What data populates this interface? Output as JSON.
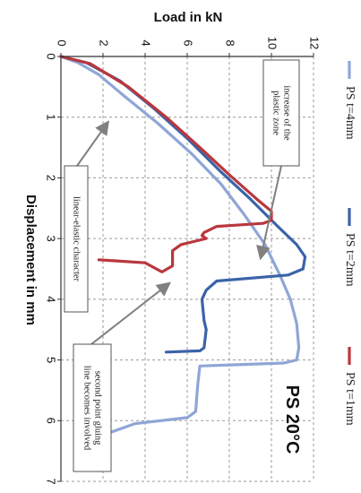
{
  "chart_data": {
    "type": "line",
    "title": "PS 20°C",
    "xlabel": "Load in kN",
    "ylabel": "Displacement in mm",
    "xlim": [
      0,
      12
    ],
    "ylim": [
      0,
      7
    ],
    "xticks": [
      "0",
      "2",
      "4",
      "6",
      "8",
      "10",
      "12"
    ],
    "yticks": [
      "0",
      "1",
      "2",
      "3",
      "4",
      "5",
      "6",
      "7"
    ],
    "grid": "dashed",
    "legend_position": "right",
    "series": [
      {
        "name": "PS t=4mm",
        "color": "#8fa6d6",
        "points": [
          [
            0,
            0
          ],
          [
            0.8,
            0.1
          ],
          [
            1.8,
            0.3
          ],
          [
            3.0,
            0.65
          ],
          [
            4.6,
            1.1
          ],
          [
            6.2,
            1.6
          ],
          [
            7.6,
            2.1
          ],
          [
            8.7,
            2.6
          ],
          [
            9.7,
            3.1
          ],
          [
            10.4,
            3.6
          ],
          [
            10.9,
            4.0
          ],
          [
            11.2,
            4.4
          ],
          [
            11.3,
            4.8
          ],
          [
            11.2,
            5.0
          ],
          [
            10.6,
            5.05
          ],
          [
            6.6,
            5.1
          ],
          [
            6.5,
            5.4
          ],
          [
            6.4,
            5.85
          ],
          [
            6.0,
            5.95
          ],
          [
            3.5,
            6.05
          ],
          [
            2.3,
            6.2
          ]
        ]
      },
      {
        "name": "PS t=2mm",
        "color": "#3b63a8",
        "points": [
          [
            0,
            0
          ],
          [
            1.2,
            0.1
          ],
          [
            2.8,
            0.4
          ],
          [
            4.4,
            0.85
          ],
          [
            6.0,
            1.35
          ],
          [
            7.6,
            1.9
          ],
          [
            9.0,
            2.35
          ],
          [
            10.3,
            2.8
          ],
          [
            11.2,
            3.1
          ],
          [
            11.6,
            3.3
          ],
          [
            11.5,
            3.5
          ],
          [
            10.8,
            3.6
          ],
          [
            7.4,
            3.7
          ],
          [
            6.9,
            3.85
          ],
          [
            6.7,
            4.0
          ],
          [
            6.8,
            4.35
          ],
          [
            6.9,
            4.5
          ],
          [
            6.8,
            4.8
          ],
          [
            6.6,
            4.85
          ],
          [
            5.0,
            4.87
          ]
        ]
      },
      {
        "name": "PS t=1mm",
        "color": "#b9373d",
        "points": [
          [
            0,
            0
          ],
          [
            1.4,
            0.12
          ],
          [
            3.2,
            0.5
          ],
          [
            5.0,
            1.0
          ],
          [
            6.6,
            1.5
          ],
          [
            8.0,
            1.95
          ],
          [
            9.3,
            2.35
          ],
          [
            10.0,
            2.55
          ],
          [
            10.0,
            2.7
          ],
          [
            9.6,
            2.75
          ],
          [
            7.4,
            2.8
          ],
          [
            6.8,
            2.9
          ],
          [
            6.7,
            2.95
          ],
          [
            6.9,
            3.0
          ],
          [
            6.3,
            3.05
          ],
          [
            5.7,
            3.1
          ],
          [
            5.3,
            3.2
          ],
          [
            5.3,
            3.45
          ],
          [
            4.8,
            3.55
          ],
          [
            4.0,
            3.4
          ],
          [
            1.8,
            3.35
          ]
        ]
      }
    ],
    "annotations": [
      {
        "lines": [
          "increase of the",
          "plastic zone"
        ],
        "arrow_to": [
          9.5,
          3.3
        ]
      },
      {
        "lines": [
          "linear-elastic character"
        ],
        "arrow_to": [
          2.2,
          1.1
        ]
      },
      {
        "lines": [
          "second point gluing",
          "line becomes involved"
        ],
        "arrow_to": [
          5.1,
          3.75
        ]
      }
    ]
  }
}
